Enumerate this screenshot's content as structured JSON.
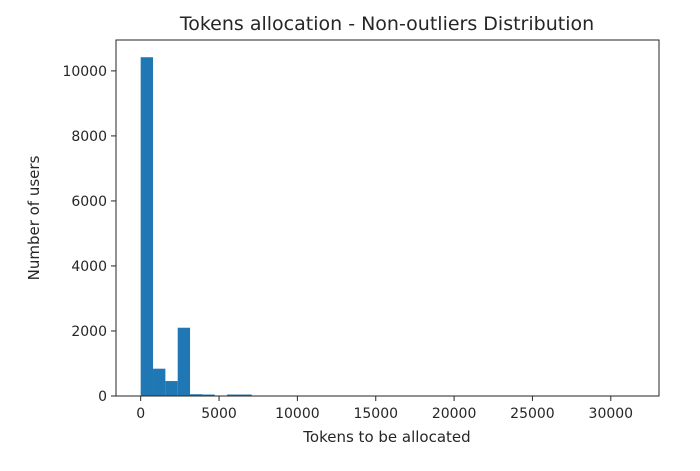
{
  "chart_data": {
    "type": "bar",
    "title": "Tokens allocation - Non-outliers Distribution",
    "xlabel": "Tokens to be allocated",
    "ylabel": "Number of users",
    "xlim": [
      -1575,
      33075
    ],
    "ylim": [
      0,
      10950
    ],
    "xticks": [
      0,
      5000,
      10000,
      15000,
      20000,
      25000,
      30000
    ],
    "xtick_labels": [
      "0",
      "5000",
      "10000",
      "15000",
      "20000",
      "25000",
      "30000"
    ],
    "yticks": [
      0,
      2000,
      4000,
      6000,
      8000,
      10000
    ],
    "ytick_labels": [
      "0",
      "2000",
      "4000",
      "6000",
      "8000",
      "10000"
    ],
    "bins": {
      "start": 0,
      "width": 787.5,
      "count": 40
    },
    "values": [
      10420,
      840,
      460,
      2100,
      55,
      45,
      10,
      45,
      45,
      8,
      5,
      5,
      5,
      4,
      4,
      3,
      3,
      3,
      3,
      3,
      3,
      2,
      2,
      2,
      2,
      2,
      2,
      2,
      2,
      2,
      2,
      2,
      2,
      2,
      2,
      2,
      2,
      2,
      2,
      2
    ],
    "color": "#1f77b4",
    "grid": false,
    "legend": false
  }
}
